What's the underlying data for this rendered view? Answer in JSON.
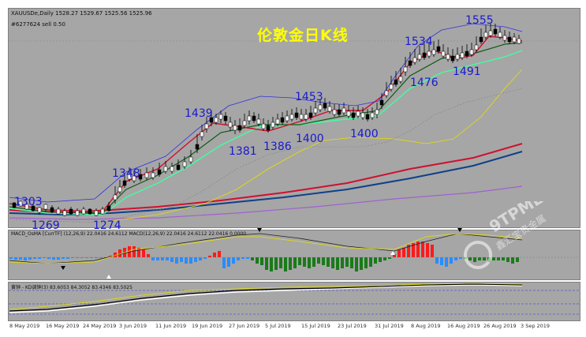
{
  "header": {
    "symbol_line": "XAUUSDe,Daily  1528.27 1529.67 1525.56 1525.96",
    "id_line": "#6277624 sell 0.50"
  },
  "overlay_title": "伦敦金日K线",
  "price_labels": [
    "1303",
    "1269",
    "1274",
    "1348",
    "1439",
    "1381",
    "1386",
    "1453",
    "1400",
    "1400",
    "1534",
    "1476",
    "1555",
    "1491"
  ],
  "macd_header": "MACD_OsMA [CurrTF] (12,26,9) 22.0416 24.6112  MACD(12,26,9) 22.0416 24.6112 22.0416 0.0000",
  "kd_header": "黄钟 - KD调钟(3) 83.6053 84.3052 83.4346 83.5025",
  "dates": [
    "8 May 2019",
    "16 May 2019",
    "24 May 2019",
    "3 Jun 2019",
    "11 Jun 2019",
    "19 Jun 2019",
    "27 Jun 2019",
    "5 Jul 2019",
    "15 Jul 2019",
    "23 Jul 2019",
    "31 Jul 2019",
    "8 Aug 2019",
    "16 Aug 2019",
    "26 Aug 2019",
    "3 Sep 2019"
  ],
  "watermark": {
    "brand": "9TPME.COM",
    "sub": "鑫汇宝贵金属"
  },
  "colors": {
    "panel_bg": "#a6a6a6",
    "title": "#ffff00",
    "label": "#1a1acc",
    "macd_up": "#ff1a1a",
    "macd_down": "#2a8cff",
    "macd_green": "#1a7a1a",
    "ma_red": "#d01030",
    "ma_green": "#0f5a10",
    "ma_cyan": "#40ffa0",
    "ma_blue": "#10408a",
    "ma_purple": "#a060d0",
    "ma_yellow": "#e8e000"
  }
}
